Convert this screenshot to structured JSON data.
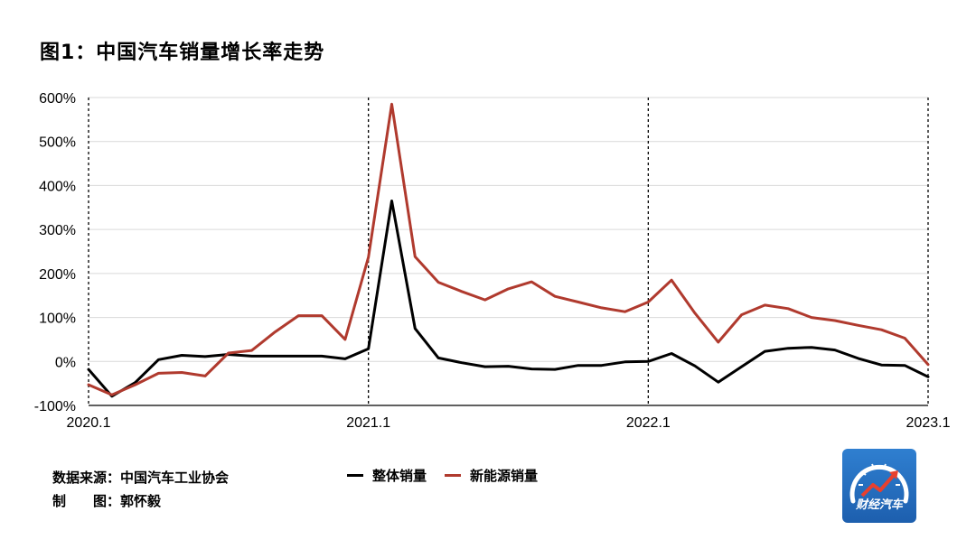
{
  "title": "图1：中国汽车销量增长率走势",
  "footer": {
    "source_label": "数据来源：",
    "source_value": "中国汽车工业协会",
    "author_label": "制　　图：",
    "author_value": "郭怀毅"
  },
  "logo": {
    "text": "财经汽车",
    "icon": "speedometer-logo"
  },
  "colors": {
    "overall": "#000000",
    "nev": "#b03a2e",
    "grid": "#d9d9d9"
  },
  "chart_data": {
    "type": "line",
    "title": "图1：中国汽车销量增长率走势",
    "xlabel": "",
    "ylabel": "",
    "ylim": [
      -100,
      600
    ],
    "ytick_values": [
      -100,
      0,
      100,
      200,
      300,
      400,
      500,
      600
    ],
    "yticks": [
      "-100%",
      "0%",
      "100%",
      "200%",
      "300%",
      "400%",
      "500%",
      "600%"
    ],
    "xticks": [
      "2020.1",
      "2021.1",
      "2022.1",
      "2023.1"
    ],
    "xtick_positions": [
      1,
      13,
      25,
      37
    ],
    "vlines_at": [
      1,
      13,
      25,
      37
    ],
    "grid": true,
    "legend_position": "bottom-center",
    "x": [
      1,
      2,
      3,
      4,
      5,
      6,
      7,
      8,
      9,
      10,
      11,
      12,
      13,
      14,
      15,
      16,
      17,
      18,
      19,
      20,
      21,
      22,
      23,
      24,
      25,
      26,
      27,
      28,
      29,
      30,
      31,
      32,
      33,
      34,
      35,
      36,
      37
    ],
    "series": [
      {
        "name": "整体销量",
        "color": "#000000",
        "values": [
          -18,
          -79,
          -48,
          4,
          14,
          11,
          16,
          12,
          12,
          12,
          12,
          6,
          29,
          365,
          75,
          8,
          -3,
          -12,
          -11,
          -17,
          -18,
          -9,
          -9,
          -1,
          0,
          18,
          -10,
          -47,
          -12,
          23,
          30,
          32,
          26,
          7,
          -8,
          -9,
          -35
        ]
      },
      {
        "name": "新能源销量",
        "color": "#b03a2e",
        "values": [
          -53,
          -76,
          -53,
          -27,
          -25,
          -33,
          19,
          25,
          67,
          104,
          104,
          50,
          237,
          585,
          238,
          180,
          159,
          140,
          165,
          181,
          148,
          135,
          122,
          113,
          135,
          185,
          110,
          44,
          106,
          128,
          120,
          100,
          93,
          82,
          72,
          53,
          -7
        ]
      }
    ]
  }
}
